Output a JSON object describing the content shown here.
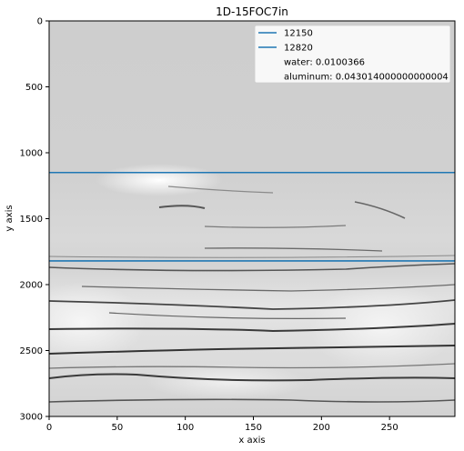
{
  "chart_data": {
    "type": "heatmap",
    "title": "1D-15FOC7in",
    "xlabel": "x axis",
    "ylabel": "y axis",
    "xlim": [
      0,
      298
    ],
    "ylim": [
      3000,
      0
    ],
    "y_inverted": true,
    "grid": false,
    "xticks": [
      0,
      50,
      100,
      150,
      200,
      250
    ],
    "yticks": [
      0,
      500,
      1000,
      1500,
      2000,
      2500,
      3000
    ],
    "colormap": "grayscale",
    "horizontal_lines": [
      {
        "name": "12150",
        "y": 1150,
        "color": "#1f77b4"
      },
      {
        "name": "12820",
        "y": 1820,
        "color": "#1f77b4"
      }
    ],
    "legend": {
      "placement": "top-right",
      "entries": [
        {
          "label": "12150",
          "marker": "line",
          "color": "#1f77b4"
        },
        {
          "label": "12820",
          "marker": "line",
          "color": "#1f77b4"
        },
        {
          "label": "water: 0.0100366",
          "marker": "none"
        },
        {
          "label": "aluminum: 0.043014000000000004",
          "marker": "none"
        }
      ]
    }
  }
}
